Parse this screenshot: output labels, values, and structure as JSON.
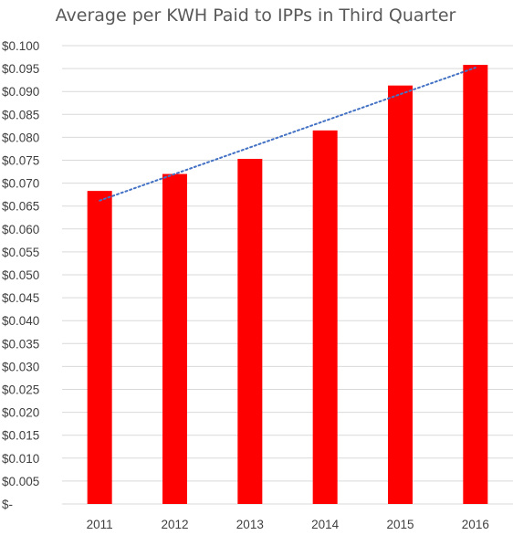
{
  "chart_data": {
    "type": "bar",
    "title": "Average per KWH Paid to IPPs in Third Quarter",
    "xlabel": "",
    "ylabel": "",
    "categories": [
      "2011",
      "2012",
      "2013",
      "2014",
      "2015",
      "2016"
    ],
    "series": [
      {
        "values": [
          0.0683,
          0.072,
          0.0753,
          0.0815,
          0.0913,
          0.0958
        ]
      }
    ],
    "trendline": {
      "type": "linear",
      "style": "dotted",
      "start": 0.0662,
      "end": 0.0952
    },
    "ylim": [
      0,
      0.1
    ],
    "yticks": [
      "$-",
      "$0.005",
      "$0.010",
      "$0.015",
      "$0.020",
      "$0.025",
      "$0.030",
      "$0.035",
      "$0.040",
      "$0.045",
      "$0.050",
      "$0.055",
      "$0.060",
      "$0.065",
      "$0.070",
      "$0.075",
      "$0.080",
      "$0.085",
      "$0.090",
      "$0.095",
      "$0.100"
    ],
    "grid": true,
    "legend": "none",
    "colors": {
      "bar": "#ff0000",
      "trendline": "#4472c4",
      "grid": "#d9d9d9"
    }
  }
}
